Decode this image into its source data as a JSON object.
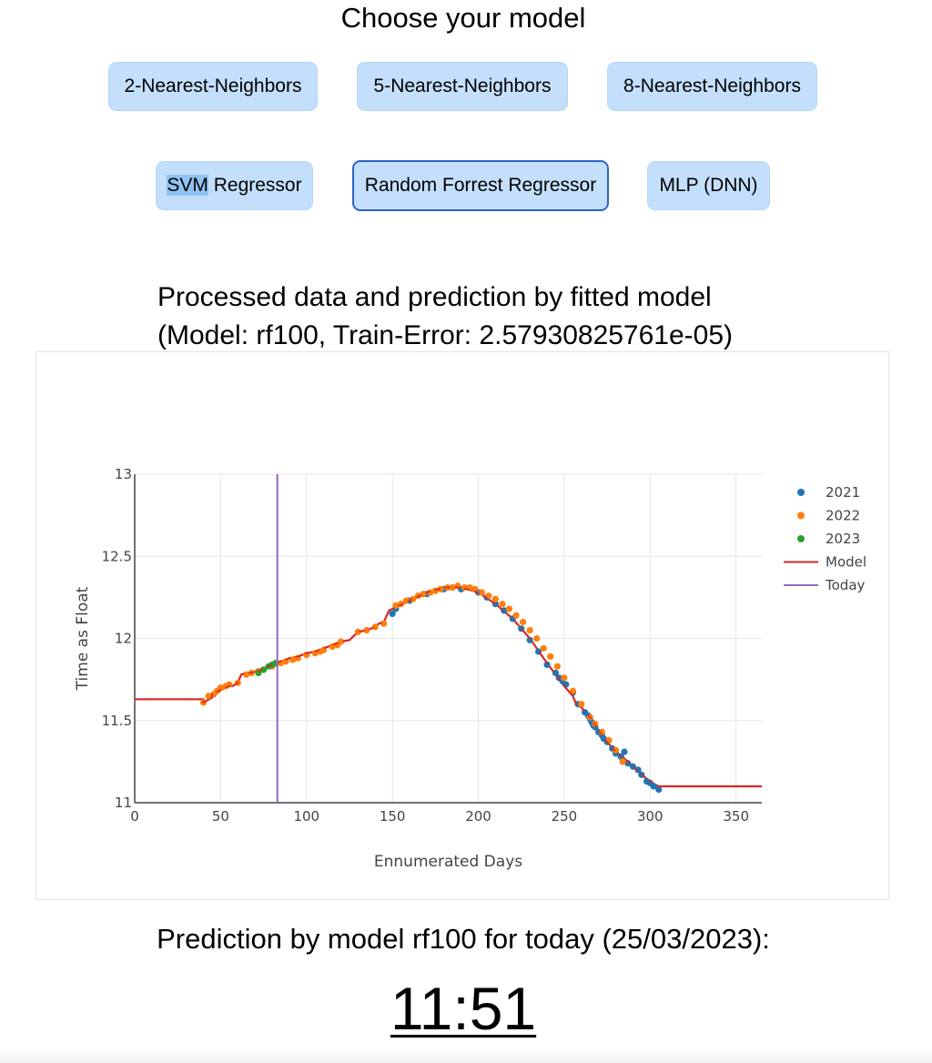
{
  "page": {
    "title": "Choose your model",
    "plot_title_line1": "Processed data and prediction by fitted model",
    "plot_title_line2": "(Model: rf100, Train-Error: 2.57930825761e-05)",
    "prediction_label": "Prediction by model rf100 for today (25/03/2023):",
    "prediction_value": "11:51"
  },
  "buttons": {
    "knn2": "2-Nearest-Neighbors",
    "knn5": "5-Nearest-Neighbors",
    "knn8": "8-Nearest-Neighbors",
    "svm_highlight": "SVM",
    "svm_rest": " Regressor",
    "rf": "Random Forrest Regressor",
    "mlp": "MLP (DNN)"
  },
  "selected_model": "Random Forrest Regressor",
  "colors": {
    "button_bg": "#c3dffb",
    "active_border": "#2d63c8",
    "series_2021": "#1f77b4",
    "series_2022": "#ff7f0e",
    "series_2023": "#2ca02c",
    "model": "#d62728",
    "today": "#9467bd"
  },
  "chart_data": {
    "type": "scatter",
    "title": "",
    "xlabel": "Ennumerated Days",
    "ylabel": "Time as Float",
    "xlim": [
      0,
      365
    ],
    "ylim": [
      11,
      13
    ],
    "xticks": [
      0,
      50,
      100,
      150,
      200,
      250,
      300,
      350
    ],
    "yticks": [
      11,
      11.5,
      12,
      12.5,
      13
    ],
    "grid": true,
    "legend_position": "top-right",
    "series": [
      {
        "name": "2021",
        "kind": "markers",
        "color": "#1f77b4",
        "x": [
          150,
          152,
          160,
          170,
          180,
          185,
          190,
          200,
          205,
          210,
          215,
          220,
          225,
          230,
          235,
          240,
          245,
          247,
          249,
          251,
          255,
          258,
          262,
          264,
          265,
          266,
          267,
          268,
          270,
          272,
          273,
          275,
          278,
          280,
          283,
          285,
          287,
          290,
          293,
          295,
          298,
          300,
          302,
          305
        ],
        "y": [
          12.15,
          12.18,
          12.23,
          12.27,
          12.3,
          12.31,
          12.3,
          12.28,
          12.25,
          12.21,
          12.17,
          12.12,
          12.06,
          11.99,
          11.92,
          11.84,
          11.79,
          11.76,
          11.74,
          11.72,
          11.67,
          11.6,
          11.55,
          11.53,
          11.51,
          11.49,
          11.47,
          11.46,
          11.43,
          11.41,
          11.39,
          11.37,
          11.33,
          11.3,
          11.28,
          11.31,
          11.24,
          11.22,
          11.2,
          11.17,
          11.13,
          11.12,
          11.1,
          11.08
        ]
      },
      {
        "name": "2022",
        "kind": "markers",
        "color": "#ff7f0e",
        "x": [
          40,
          43,
          46,
          48,
          50,
          53,
          55,
          60,
          65,
          68,
          72,
          75,
          80,
          85,
          88,
          92,
          95,
          100,
          105,
          108,
          110,
          115,
          118,
          120,
          130,
          135,
          140,
          145,
          152,
          155,
          158,
          162,
          165,
          168,
          172,
          175,
          178,
          182,
          185,
          188,
          192,
          195,
          198,
          202,
          206,
          210,
          214,
          218,
          222,
          226,
          230,
          234,
          238,
          242,
          246,
          250,
          255,
          260,
          265,
          268,
          272,
          276,
          280,
          284
        ],
        "y": [
          11.61,
          11.65,
          11.66,
          11.68,
          11.7,
          11.71,
          11.72,
          11.73,
          11.78,
          11.79,
          11.8,
          11.81,
          11.83,
          11.85,
          11.86,
          11.87,
          11.88,
          11.9,
          11.91,
          11.92,
          11.93,
          11.95,
          11.96,
          11.98,
          12.04,
          12.05,
          12.07,
          12.09,
          12.2,
          12.21,
          12.23,
          12.24,
          12.26,
          12.27,
          12.28,
          12.29,
          12.3,
          12.31,
          12.31,
          12.32,
          12.31,
          12.31,
          12.3,
          12.28,
          12.26,
          12.24,
          12.21,
          12.18,
          12.14,
          12.1,
          12.05,
          12.0,
          11.94,
          11.89,
          11.83,
          11.76,
          11.68,
          11.6,
          11.52,
          11.48,
          11.43,
          11.38,
          11.32,
          11.25
        ]
      },
      {
        "name": "2023",
        "kind": "markers",
        "color": "#2ca02c",
        "x": [
          72,
          75,
          78,
          80,
          82
        ],
        "y": [
          11.79,
          11.81,
          11.83,
          11.84,
          11.85
        ]
      },
      {
        "name": "Model",
        "kind": "line",
        "color": "#d62728",
        "x": [
          0,
          30,
          40,
          40,
          45,
          45,
          55,
          57,
          60,
          62,
          65,
          68,
          70,
          72,
          75,
          78,
          80,
          82,
          85,
          88,
          90,
          95,
          100,
          105,
          110,
          115,
          120,
          125,
          130,
          135,
          140,
          142,
          145,
          148,
          150,
          160,
          170,
          180,
          190,
          200,
          210,
          220,
          230,
          240,
          245,
          250,
          255,
          257,
          260,
          265,
          270,
          275,
          280,
          285,
          290,
          295,
          300,
          303,
          305,
          320,
          365
        ],
        "y": [
          11.63,
          11.63,
          11.63,
          11.61,
          11.64,
          11.66,
          11.71,
          11.71,
          11.73,
          11.78,
          11.79,
          11.79,
          11.8,
          11.8,
          11.82,
          11.83,
          11.84,
          11.85,
          11.86,
          11.87,
          11.88,
          11.89,
          11.91,
          11.92,
          11.94,
          11.96,
          11.98,
          11.99,
          12.04,
          12.05,
          12.07,
          12.09,
          12.1,
          12.17,
          12.18,
          12.23,
          12.28,
          12.31,
          12.31,
          12.28,
          12.21,
          12.12,
          12.0,
          11.85,
          11.78,
          11.71,
          11.65,
          11.6,
          11.58,
          11.52,
          11.44,
          11.37,
          11.31,
          11.27,
          11.22,
          11.17,
          11.13,
          11.11,
          11.1,
          11.1,
          11.1
        ]
      },
      {
        "name": "Today",
        "kind": "vline",
        "color": "#9467bd",
        "x": 83
      }
    ]
  }
}
